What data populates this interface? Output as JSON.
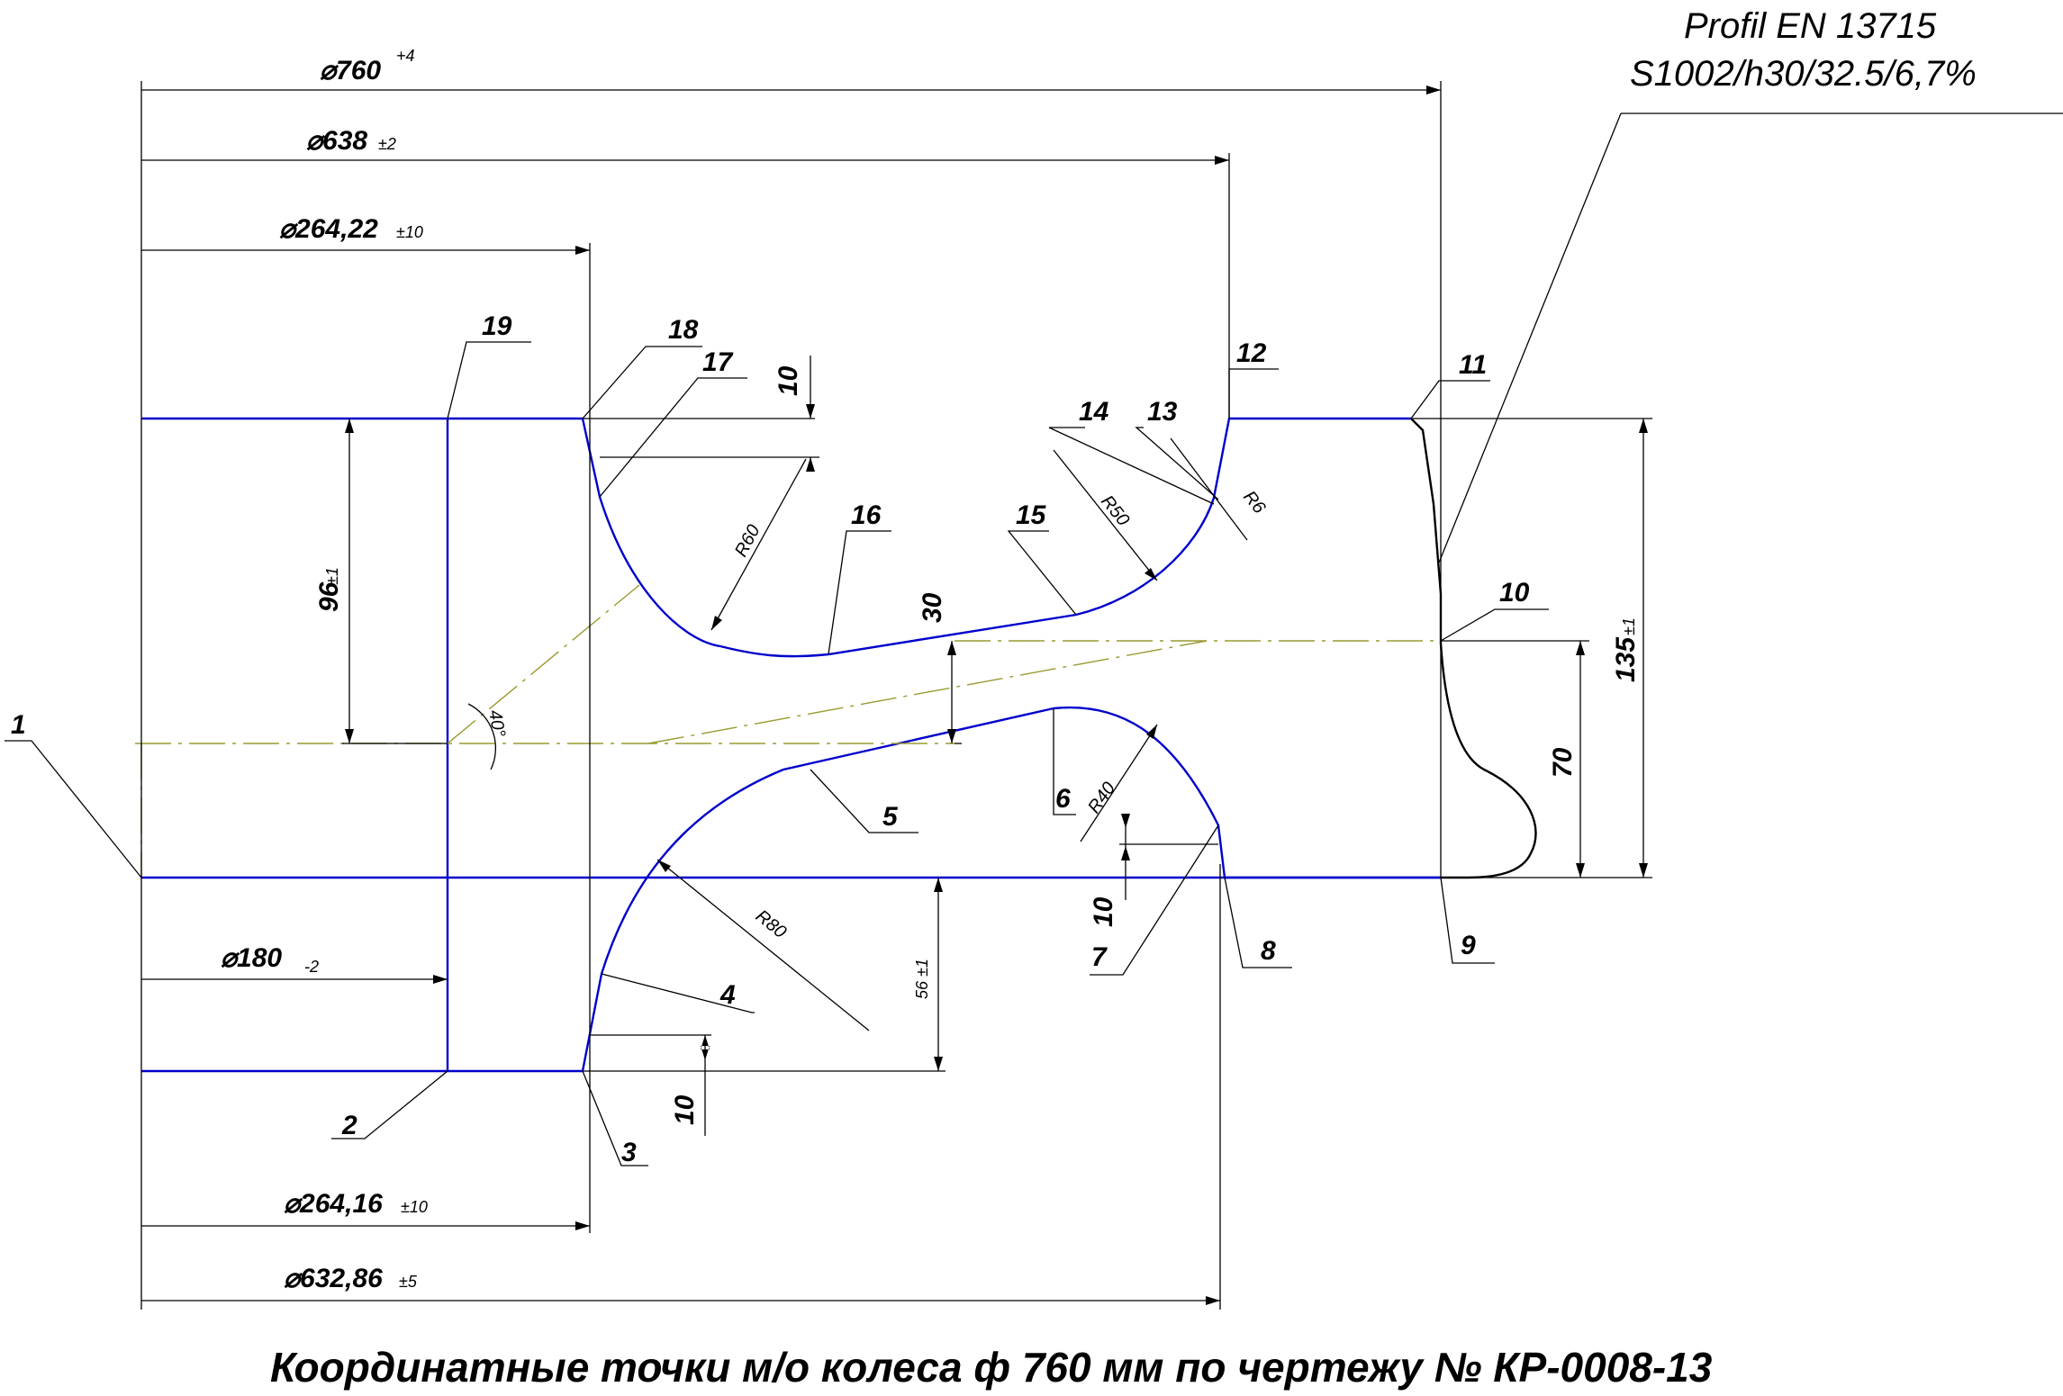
{
  "profile": {
    "line1": "Profil EN 13715",
    "line2": "S1002/h30/32.5/6,7%"
  },
  "caption": "Координатные точки м/о колеса ф 760 мм по чертежу № КР-0008-13",
  "dimensions": {
    "d760": {
      "value": "⌀760",
      "tol": "+4"
    },
    "d638": {
      "value": "⌀638",
      "tol": "±2"
    },
    "d264_22": {
      "value": "⌀264,22",
      "tol": "±10"
    },
    "d180": {
      "value": "⌀180",
      "tol": "-2"
    },
    "d264_16": {
      "value": "⌀264,16",
      "tol": "±10"
    },
    "d632_86": {
      "value": "⌀632,86",
      "tol": "±5"
    },
    "h96": {
      "value": "96",
      "tol": "±1"
    },
    "h135": {
      "value": "135",
      "tol": "±1"
    },
    "h70": "70",
    "h30": "30",
    "h56": {
      "value": "56",
      "tol": "±1"
    },
    "h10_top": "10",
    "h10_bottom": "10",
    "h10_right": "10"
  },
  "radii": {
    "r60": "R60",
    "r50": "R50",
    "r6": "R6",
    "r40": "R40",
    "r80": "R80"
  },
  "angle": "40°",
  "points": [
    "1",
    "2",
    "3",
    "4",
    "5",
    "6",
    "7",
    "8",
    "9",
    "10",
    "11",
    "12",
    "13",
    "14",
    "15",
    "16",
    "17",
    "18",
    "19"
  ],
  "colors": {
    "contour": "#0000cc",
    "tread": "#000000",
    "axis": "#9a9a30"
  }
}
